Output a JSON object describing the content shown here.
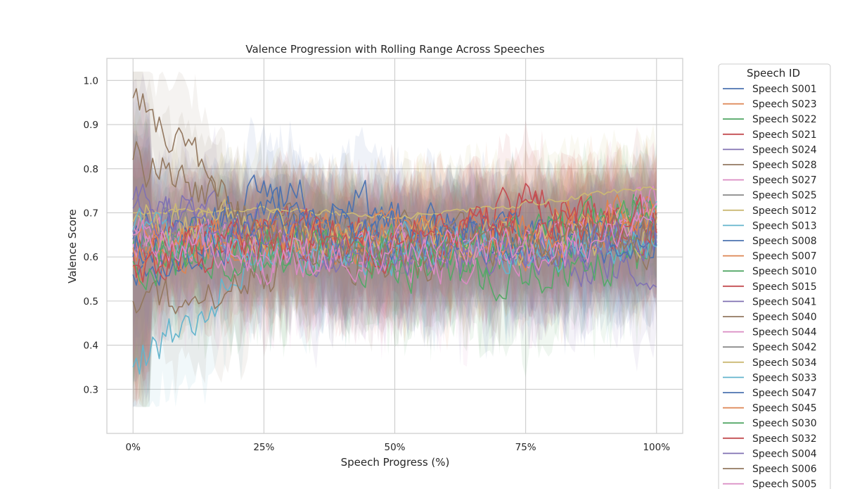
{
  "chart_data": {
    "type": "line",
    "title": "Valence Progression with Rolling Range Across Speeches",
    "xlabel": "Speech Progress (%)",
    "ylabel": "Valence Score",
    "xlim": [
      -5,
      105
    ],
    "ylim": [
      0.2,
      1.05
    ],
    "x_ticks": [
      0,
      25,
      50,
      75,
      100
    ],
    "x_tick_labels": [
      "0%",
      "25%",
      "50%",
      "75%",
      "100%"
    ],
    "y_ticks": [
      0.3,
      0.4,
      0.5,
      0.6,
      0.7,
      0.8,
      0.9,
      1.0
    ],
    "y_tick_labels": [
      "0.3",
      "0.4",
      "0.5",
      "0.6",
      "0.7",
      "0.8",
      "0.9",
      "1.0"
    ],
    "grid": true,
    "legend_title": "Speech ID",
    "legend_position": "outside-right",
    "palette": [
      "#4c72b0",
      "#dd8452",
      "#55a868",
      "#c44e52",
      "#8172b3",
      "#937860",
      "#da8bc3",
      "#8c8c8c",
      "#ccb974",
      "#64b5cd"
    ],
    "series": [
      {
        "name": "Speech S001",
        "x": [
          0,
          25,
          50,
          75,
          100
        ],
        "values": [
          0.56,
          0.75,
          0.7,
          0.62,
          0.65
        ]
      },
      {
        "name": "Speech S023",
        "x": [
          0,
          25,
          50,
          75,
          100
        ],
        "values": [
          0.58,
          0.66,
          0.62,
          0.68,
          0.7
        ]
      },
      {
        "name": "Speech S022",
        "x": [
          0,
          25,
          50,
          75,
          100
        ],
        "values": [
          0.62,
          0.64,
          0.61,
          0.6,
          0.74
        ]
      },
      {
        "name": "Speech S021",
        "x": [
          0,
          25,
          50,
          75,
          100
        ],
        "values": [
          0.6,
          0.66,
          0.62,
          0.72,
          0.69
        ]
      },
      {
        "name": "Speech S024",
        "x": [
          0,
          25,
          50,
          75,
          100
        ],
        "values": [
          0.73,
          0.68,
          0.64,
          0.62,
          0.56
        ]
      },
      {
        "name": "Speech S028",
        "x": [
          0,
          25,
          50,
          75,
          100
        ],
        "values": [
          0.82,
          0.67,
          0.66,
          0.63,
          0.7
        ]
      },
      {
        "name": "Speech S027",
        "x": [
          0,
          25,
          50,
          75,
          100
        ],
        "values": [
          0.63,
          0.6,
          0.59,
          0.61,
          0.73
        ]
      },
      {
        "name": "Speech S025",
        "x": [
          0,
          25,
          50,
          75,
          100
        ],
        "values": [
          0.65,
          0.64,
          0.62,
          0.63,
          0.67
        ]
      },
      {
        "name": "Speech S012",
        "x": [
          0,
          25,
          50,
          75,
          100
        ],
        "values": [
          0.7,
          0.71,
          0.69,
          0.72,
          0.76
        ]
      },
      {
        "name": "Speech S013",
        "x": [
          0,
          25,
          50,
          75,
          100
        ],
        "values": [
          0.35,
          0.62,
          0.61,
          0.62,
          0.67
        ]
      },
      {
        "name": "Speech S008",
        "x": [
          0,
          25,
          50,
          75,
          100
        ],
        "values": [
          0.64,
          0.7,
          0.66,
          0.65,
          0.62
        ]
      },
      {
        "name": "Speech S007",
        "x": [
          0,
          25,
          50,
          75,
          100
        ],
        "values": [
          0.62,
          0.64,
          0.66,
          0.63,
          0.68
        ]
      },
      {
        "name": "Speech S010",
        "x": [
          0,
          25,
          50,
          75,
          100
        ],
        "values": [
          0.63,
          0.62,
          0.58,
          0.56,
          0.6
        ]
      },
      {
        "name": "Speech S015",
        "x": [
          0,
          25,
          50,
          75,
          100
        ],
        "values": [
          0.61,
          0.65,
          0.64,
          0.66,
          0.64
        ]
      },
      {
        "name": "Speech S041",
        "x": [
          0,
          25,
          50,
          75,
          100
        ],
        "values": [
          0.66,
          0.63,
          0.62,
          0.61,
          0.66
        ]
      },
      {
        "name": "Speech S040",
        "x": [
          0,
          25,
          50,
          75,
          100
        ],
        "values": [
          0.5,
          0.56,
          0.6,
          0.62,
          0.64
        ]
      },
      {
        "name": "Speech S044",
        "x": [
          0,
          25,
          50,
          75,
          100
        ],
        "values": [
          0.67,
          0.61,
          0.6,
          0.62,
          0.7
        ]
      },
      {
        "name": "Speech S042",
        "x": [
          0,
          25,
          50,
          75,
          100
        ],
        "values": [
          0.64,
          0.66,
          0.63,
          0.64,
          0.65
        ]
      },
      {
        "name": "Speech S034",
        "x": [
          0,
          25,
          50,
          75,
          100
        ],
        "values": [
          0.68,
          0.66,
          0.64,
          0.63,
          0.67
        ]
      },
      {
        "name": "Speech S033",
        "x": [
          0,
          25,
          50,
          75,
          100
        ],
        "values": [
          0.66,
          0.61,
          0.63,
          0.62,
          0.64
        ]
      },
      {
        "name": "Speech S047",
        "x": [
          0,
          25,
          50,
          75,
          100
        ],
        "values": [
          0.6,
          0.67,
          0.64,
          0.65,
          0.62
        ]
      },
      {
        "name": "Speech S045",
        "x": [
          0,
          25,
          50,
          75,
          100
        ],
        "values": [
          0.62,
          0.63,
          0.65,
          0.61,
          0.72
        ]
      },
      {
        "name": "Speech S030",
        "x": [
          0,
          25,
          50,
          75,
          100
        ],
        "values": [
          0.59,
          0.61,
          0.62,
          0.63,
          0.7
        ]
      },
      {
        "name": "Speech S032",
        "x": [
          0,
          25,
          50,
          75,
          100
        ],
        "values": [
          0.58,
          0.64,
          0.63,
          0.7,
          0.68
        ]
      },
      {
        "name": "Speech S004",
        "x": [
          0,
          25,
          50,
          75,
          100
        ],
        "values": [
          0.71,
          0.63,
          0.6,
          0.61,
          0.66
        ]
      },
      {
        "name": "Speech S006",
        "x": [
          0,
          25,
          50,
          75,
          100
        ],
        "values": [
          0.96,
          0.65,
          0.62,
          0.64,
          0.66
        ]
      },
      {
        "name": "Speech S005",
        "x": [
          0,
          25,
          50,
          75,
          100
        ],
        "values": [
          0.65,
          0.6,
          0.61,
          0.6,
          0.66
        ]
      }
    ]
  }
}
